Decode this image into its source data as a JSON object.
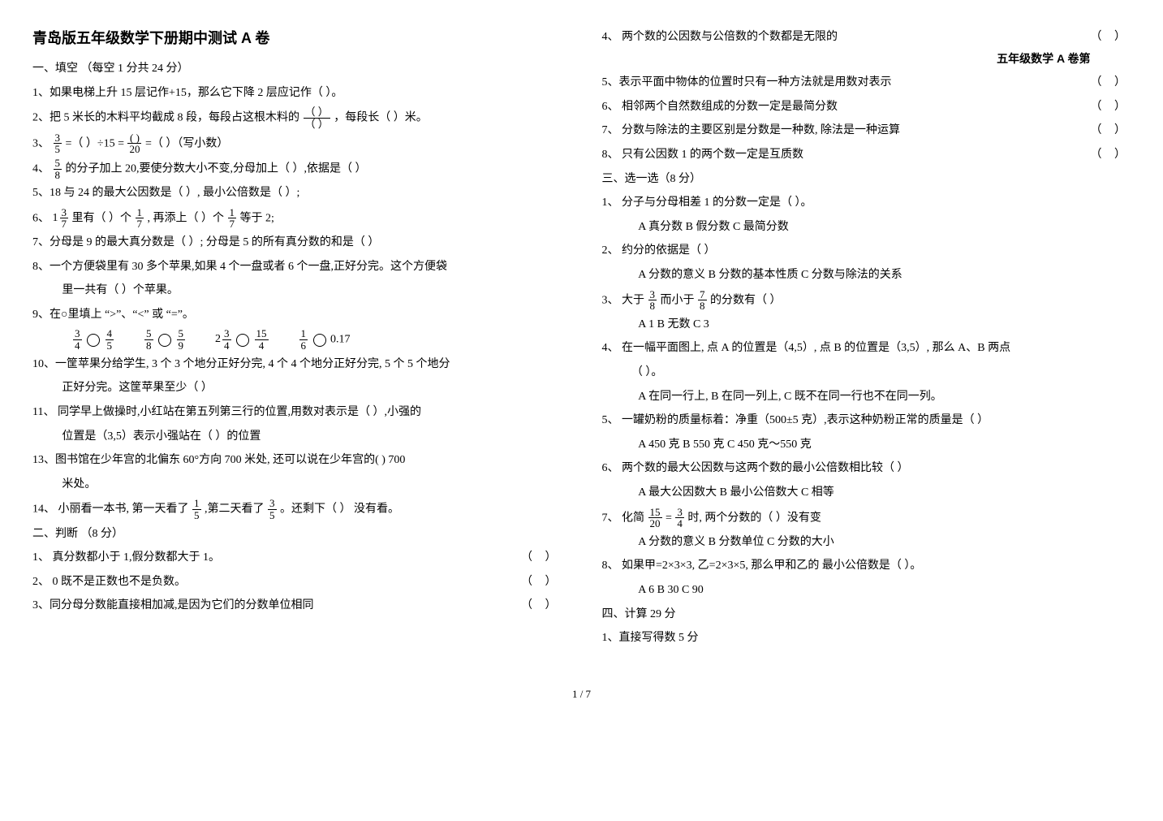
{
  "title": "青岛版五年级数学下册期中测试 A 卷",
  "right_header": "五年级数学 A 卷第",
  "sec1_head": "一、填空  （每空 1 分共 24 分）",
  "q1": "1、如果电梯上升 15 层记作+15，那么它下降 2 层应记作（      ）。",
  "q2_a": "2、把 5 米长的木料平均截成 8 段，每段占这根木料的",
  "q2_b": "，每段长（      ）米。",
  "q3_a": "3、",
  "q3_b": " =（      ）÷15 =",
  "q3_c": " =（      ）（写小数）",
  "q4_a": "4、",
  "q4_b": "的分子加上 20,要使分数大小不变,分母加上（        ）,依据是（                    ）",
  "q5": "5、18 与 24 的最大公因数是（          ）, 最小公倍数是（          ）;",
  "q6_a": "6、",
  "q6_b": "里有（        ）个",
  "q6_c": ", 再添上（      ）个",
  "q6_d": "等于 2;",
  "q7": "7、分母是 9 的最大真分数是（      ）;   分母是 5 的所有真分数的和是（      ）",
  "q8a": "8、一个方便袋里有 30 多个苹果,如果 4 个一盘或者 6 个一盘,正好分完。这个方便袋",
  "q8b": "里一共有（      ）个苹果。",
  "q9": "9、在○里填上 “>”、“<” 或 “=”。",
  "q10a": "10、一筐苹果分给学生, 3 个 3 个地分正好分完, 4 个 4 个地分正好分完, 5 个 5 个地分",
  "q10b": "正好分完。这筐苹果至少（      ）",
  "q11a": "11、 同学早上做操时,小红站在第五列第三行的位置,用数对表示是（        ）,小强的",
  "q11b": "位置是（3,5）表示小强站在（                 ）的位置",
  "q13a": "13、图书馆在少年宫的北偏东 60°方向 700 米处, 还可以说在少年宫的(            ) 700",
  "q13b": "米处。",
  "q14_a": "14、 小丽看一本书, 第一天看了",
  "q14_b": ",第二天看了",
  "q14_c": "。还剩下（      ）  没有看。",
  "sec2_head": "二、判断 （8 分）",
  "j1": "1、 真分数都小于 1,假分数都大于 1。",
  "j2": "2、 0 既不是正数也不是负数。",
  "j3": "3、同分母分数能直接相加减,是因为它们的分数单位相同",
  "j4": "4、 两个数的公因数与公倍数的个数都是无限的",
  "j5": "5、表示平面中物体的位置时只有一种方法就是用数对表示",
  "j6": "6、 相邻两个自然数组成的分数一定是最简分数",
  "j7": "7、 分数与除法的主要区别是分数是一种数, 除法是一种运算",
  "j8": "8、 只有公因数 1 的两个数一定是互质数",
  "sec3_head": "三、选一选（8 分）",
  "c1": "1、  分子与分母相差 1 的分数一定是（      ）。",
  "c1o": "A   真分数    B    假分数    C  最简分数",
  "c2": "2、  约分的依据是（       ）",
  "c2o": "A   分数的意义    B 分数的基本性质       C 分数与除法的关系",
  "c3a": "3、  大于",
  "c3b": "而小于",
  "c3c": "的分数有（       ）",
  "c3o": "A     1             B   无数               C    3",
  "c4a": "4、 在一幅平面图上, 点 A 的位置是（4,5）, 点 B 的位置是（3,5）, 那么 A、B 两点",
  "c4b": "（          ）。",
  "c4o": "A   在同一行上,      B 在同一列上,    C    既不在同一行也不在同一列。",
  "c5": "5、 一罐奶粉的质量标着：净重（500±5 克）,表示这种奶粉正常的质量是（      ）",
  "c5o": "A    450 克            B    550 克           C   450 克～550 克",
  "c6": "6、 两个数的最大公因数与这两个数的最小公倍数相比较（       ）",
  "c6o": "A   最大公因数大        B     最小公倍数大        C    相等",
  "c7a": "7、 化简",
  "c7b": "时,  两个分数的（       ）没有变",
  "c7o": "A     分数的意义        B    分数单位        C  分数的大小",
  "c8": "8、  如果甲=2×3×3, 乙=2×3×5, 那么甲和乙的 最小公倍数是（      ）。",
  "c8o": "A     6           B   30       C       90",
  "sec4_head": "四、计算 29 分",
  "sec4_1": "1、直接写得数  5 分",
  "footer": "1 / 7",
  "frac_2": {
    "n": "（      ）",
    "d": "（      ）"
  },
  "frac_3a": {
    "n": "3",
    "d": "5"
  },
  "frac_3b": {
    "n": "(  )",
    "d": "20"
  },
  "frac_4": {
    "n": "5",
    "d": "8"
  },
  "frac_6m": {
    "w": "1",
    "n": "3",
    "d": "7"
  },
  "frac_6a": {
    "n": "1",
    "d": "7"
  },
  "frac_6b": {
    "n": "1",
    "d": "7"
  },
  "cmp1a": {
    "n": "3",
    "d": "4"
  },
  "cmp1b": {
    "n": "4",
    "d": "5"
  },
  "cmp2a": {
    "n": "5",
    "d": "8"
  },
  "cmp2b": {
    "n": "5",
    "d": "9"
  },
  "cmp3a": {
    "w": "2",
    "n": "3",
    "d": "4"
  },
  "cmp3b": {
    "n": "15",
    "d": "4"
  },
  "cmp4a": {
    "n": "1",
    "d": "6"
  },
  "cmp4b": "0.17",
  "frac_14a": {
    "n": "1",
    "d": "5"
  },
  "frac_14b": {
    "n": "3",
    "d": "5"
  },
  "frac_c3a": {
    "n": "3",
    "d": "8"
  },
  "frac_c3b": {
    "n": "7",
    "d": "8"
  },
  "frac_c7a": {
    "n": "15",
    "d": "20"
  },
  "frac_c7b": {
    "n": "3",
    "d": "4"
  },
  "c7eq": "=",
  "paren_tf": "（   ）"
}
